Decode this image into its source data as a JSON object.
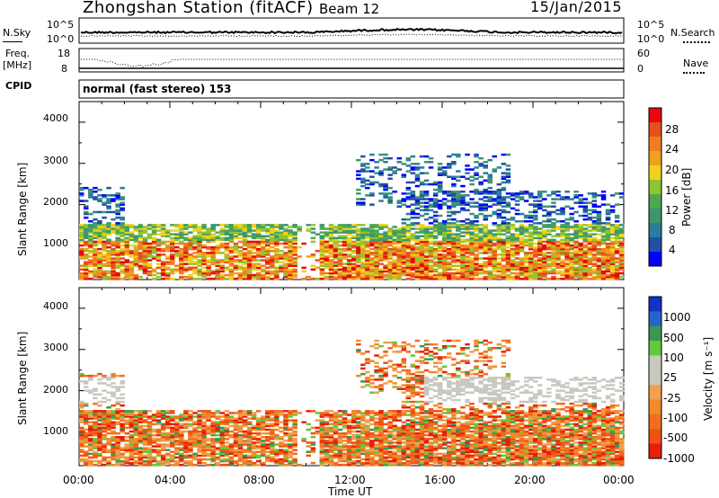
{
  "header": {
    "station": "Zhongshan Station (fitACF)",
    "beam": "Beam 12",
    "date": "15/Jan/2015"
  },
  "top_panel": {
    "left_label": "N.Sky",
    "left_ticks": [
      "10^5",
      "10^0"
    ],
    "right_ticks": [
      "10^5",
      "10^0"
    ],
    "right_label": "N.Search"
  },
  "freq_panel": {
    "left_label_1": "Freq.",
    "left_label_2": "[MHz]",
    "left_ticks": [
      "18",
      "8"
    ],
    "right_ticks": [
      "60",
      "0"
    ],
    "right_label": "Nave"
  },
  "cpid": {
    "label": "CPID",
    "value": "normal (fast stereo) 153"
  },
  "x_axis": {
    "label": "Time UT",
    "ticks": [
      "00:00",
      "04:00",
      "08:00",
      "12:00",
      "16:00",
      "20:00",
      "00:00"
    ]
  },
  "chart_data": [
    {
      "type": "heatmap",
      "title": "",
      "xlabel": "Time UT",
      "ylabel": "Slant Range [km]",
      "xlim": [
        0,
        24
      ],
      "ylim": [
        180,
        4500
      ],
      "yticks": [
        "1000",
        "2000",
        "3000",
        "4000"
      ],
      "colorbar": {
        "label": "Power [dB]",
        "ticks": [
          "4",
          "8",
          "12",
          "16",
          "20",
          "24",
          "28"
        ],
        "colors": [
          "#0000ff",
          "#234fa5",
          "#2a7e9c",
          "#3c9670",
          "#4fa84f",
          "#8fc433",
          "#f0d21e",
          "#f0a020",
          "#f07c1e",
          "#e6501e",
          "#e60a0a"
        ]
      }
    },
    {
      "type": "heatmap",
      "title": "",
      "xlabel": "Time UT",
      "ylabel": "Slant Range [km]",
      "xlim": [
        0,
        24
      ],
      "ylim": [
        180,
        4500
      ],
      "yticks": [
        "1000",
        "2000",
        "3000",
        "4000"
      ],
      "colorbar": {
        "label": "Velocity [m s⁻¹]",
        "ticks": [
          "1000",
          "500",
          "100",
          "25",
          "-25",
          "-100",
          "-500",
          "-1000"
        ],
        "colors": [
          "#1432c8",
          "#2864c8",
          "#3c9650",
          "#64c83c",
          "#c8c8c0",
          "#c8c8c0",
          "#f0a050",
          "#f08c28",
          "#f06e1e",
          "#f05014",
          "#e61e0a"
        ]
      }
    }
  ]
}
